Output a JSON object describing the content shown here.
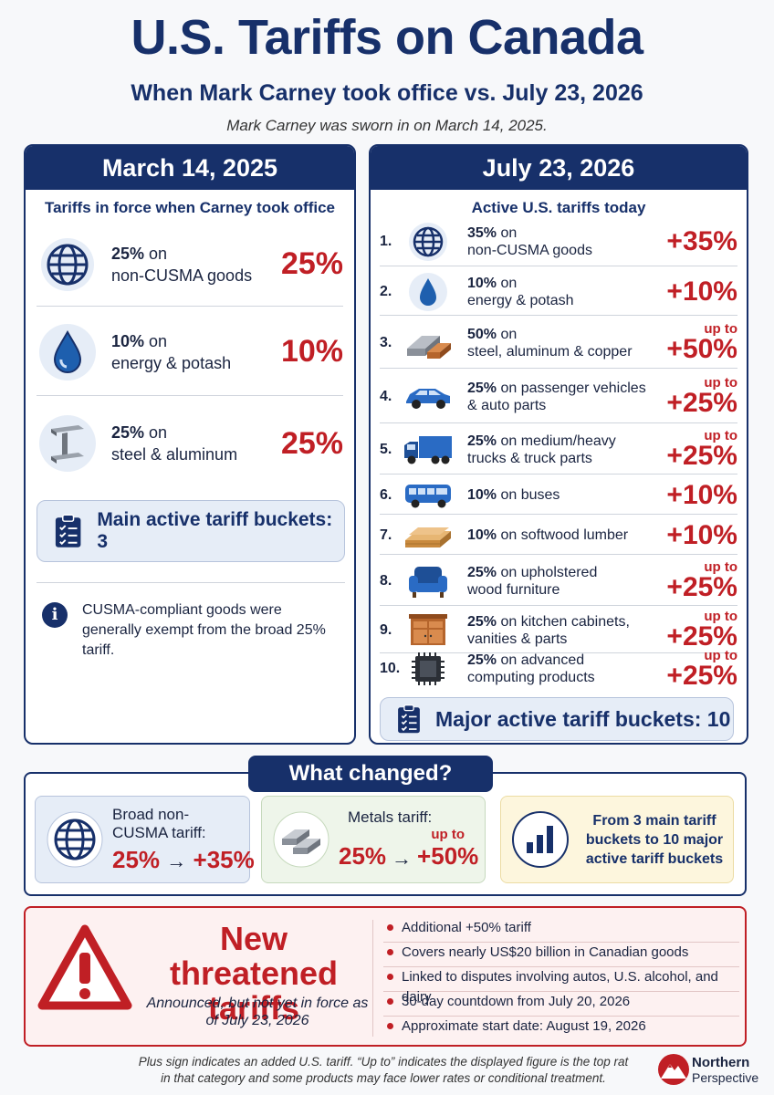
{
  "header": {
    "title": "U.S. Tariffs on Canada",
    "subtitle": "When Mark Carney took office vs. July 23, 2026",
    "note": "Mark Carney was sworn in on March 14, 2025."
  },
  "left": {
    "heading": "March 14, 2025",
    "subheading": "Tariffs in force when Carney took office",
    "items": [
      {
        "rate": "25%",
        "desc": "on",
        "desc2": "non-CUSMA goods",
        "value": "25%",
        "icon": "globe-icon"
      },
      {
        "rate": "10%",
        "desc": "on",
        "desc2": "energy & potash",
        "value": "10%",
        "icon": "droplet-icon"
      },
      {
        "rate": "25%",
        "desc": "on",
        "desc2": "steel & aluminum",
        "value": "25%",
        "icon": "steel-beam-icon"
      }
    ],
    "bucket_label": "Main active tariff buckets: 3",
    "info_text": "CUSMA-compliant goods were generally exempt from the broad 25% tariff."
  },
  "right": {
    "heading": "July 23, 2026",
    "subheading": "Active U.S. tariffs today",
    "items": [
      {
        "num": "1.",
        "rate": "35%",
        "desc": " on",
        "desc2": "non-CUSMA goods",
        "upto": "",
        "value": "+35%",
        "icon": "globe-icon"
      },
      {
        "num": "2.",
        "rate": "10%",
        "desc": " on",
        "desc2": "energy & potash",
        "upto": "",
        "value": "+10%",
        "icon": "droplet-icon"
      },
      {
        "num": "3.",
        "rate": "50%",
        "desc": " on",
        "desc2": "steel, aluminum & copper",
        "upto": "up to",
        "value": "+50%",
        "icon": "metal-bars-icon"
      },
      {
        "num": "4.",
        "rate": "25%",
        "desc": " on passenger vehicles",
        "desc2": "& auto parts",
        "upto": "up to",
        "value": "+25%",
        "icon": "car-icon"
      },
      {
        "num": "5.",
        "rate": "25%",
        "desc": " on medium/heavy",
        "desc2": "trucks & truck parts",
        "upto": "up to",
        "value": "+25%",
        "icon": "truck-icon"
      },
      {
        "num": "6.",
        "rate": "10%",
        "desc": " on buses",
        "desc2": "",
        "upto": "",
        "value": "+10%",
        "icon": "bus-icon"
      },
      {
        "num": "7.",
        "rate": "10%",
        "desc": " on softwood lumber",
        "desc2": "",
        "upto": "",
        "value": "+10%",
        "icon": "lumber-icon"
      },
      {
        "num": "8.",
        "rate": "25%",
        "desc": " on upholstered",
        "desc2": "wood furniture",
        "upto": "up to",
        "value": "+25%",
        "icon": "armchair-icon"
      },
      {
        "num": "9.",
        "rate": "25%",
        "desc": " on kitchen cabinets,",
        "desc2": "vanities & parts",
        "upto": "up to",
        "value": "+25%",
        "icon": "cabinet-icon"
      },
      {
        "num": "10.",
        "rate": "25%",
        "desc": " on advanced",
        "desc2": "computing products",
        "upto": "up to",
        "value": "+25%",
        "icon": "chip-icon"
      }
    ],
    "bucket_label": "Major active tariff buckets: 10"
  },
  "changed": {
    "heading": "What changed?",
    "broad": {
      "label": "Broad non-CUSMA tariff:",
      "from": "25%",
      "arrow": "→",
      "to": "+35%"
    },
    "metals": {
      "label": "Metals tariff:",
      "from": "25%",
      "arrow": "→",
      "upto": "up to",
      "to": "+50%"
    },
    "buckets": {
      "label": "From 3 main tariff buckets to 10 major active tariff buckets"
    }
  },
  "threat": {
    "title": "New threatened tariffs",
    "subtitle": "Announced, but not yet in force as of July 23, 2026",
    "bullets": [
      "Additional +50% tariff",
      "Covers nearly US$20 billion in Canadian goods",
      "Linked to disputes involving autos, U.S. alcohol, and dairy",
      "30-day countdown from July 20, 2026",
      "Approximate start date: August 19, 2026"
    ]
  },
  "footer": {
    "note": "Plus sign indicates an added U.S. tariff. “Up to” indicates the displayed figure is the top rat in that category and some products may face lower rates or conditional treatment.",
    "brand_name": "Northern",
    "brand_sub": "Perspective"
  },
  "colors": {
    "navy": "#17306a",
    "red": "#c01f25",
    "bucket_bg": "#e6edf7"
  }
}
